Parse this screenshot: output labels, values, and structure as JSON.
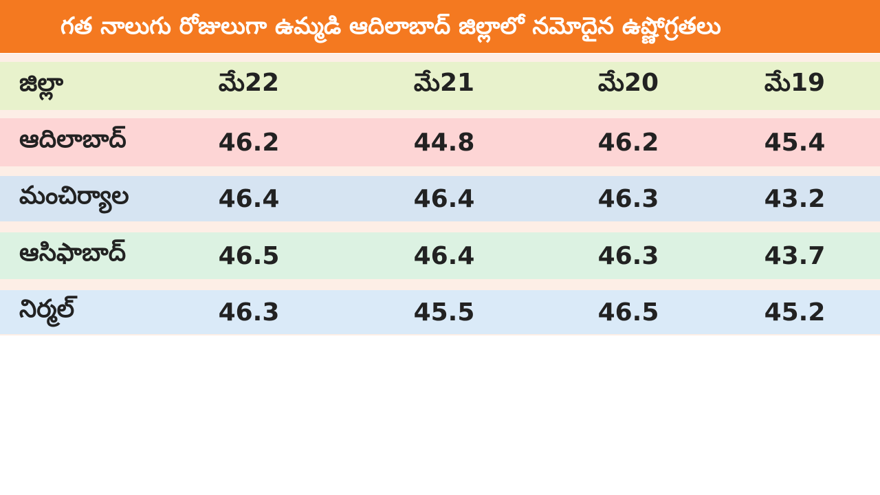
{
  "header": {
    "title": "గత నాలుగు రోజులుగా ఉమ్మడి ఆదిలాబాద్ జిల్లాలో నమోదైన ఉష్ణోగ్రతలు"
  },
  "table": {
    "columns": [
      "జిల్లా",
      "మే22",
      "మే21",
      "మే20",
      "మే19"
    ],
    "rows": [
      [
        "ఆదిలాబాద్",
        "46.2",
        "44.8",
        "46.2",
        "45.4"
      ],
      [
        "మంచిర్యాల",
        "46.4",
        "46.4",
        "46.3",
        "43.2"
      ],
      [
        "ఆసిఫాబాద్",
        "46.5",
        "46.4",
        "46.3",
        "43.7"
      ],
      [
        "నిర్మల్",
        "46.3",
        "45.5",
        "46.5",
        "45.2"
      ]
    ]
  }
}
